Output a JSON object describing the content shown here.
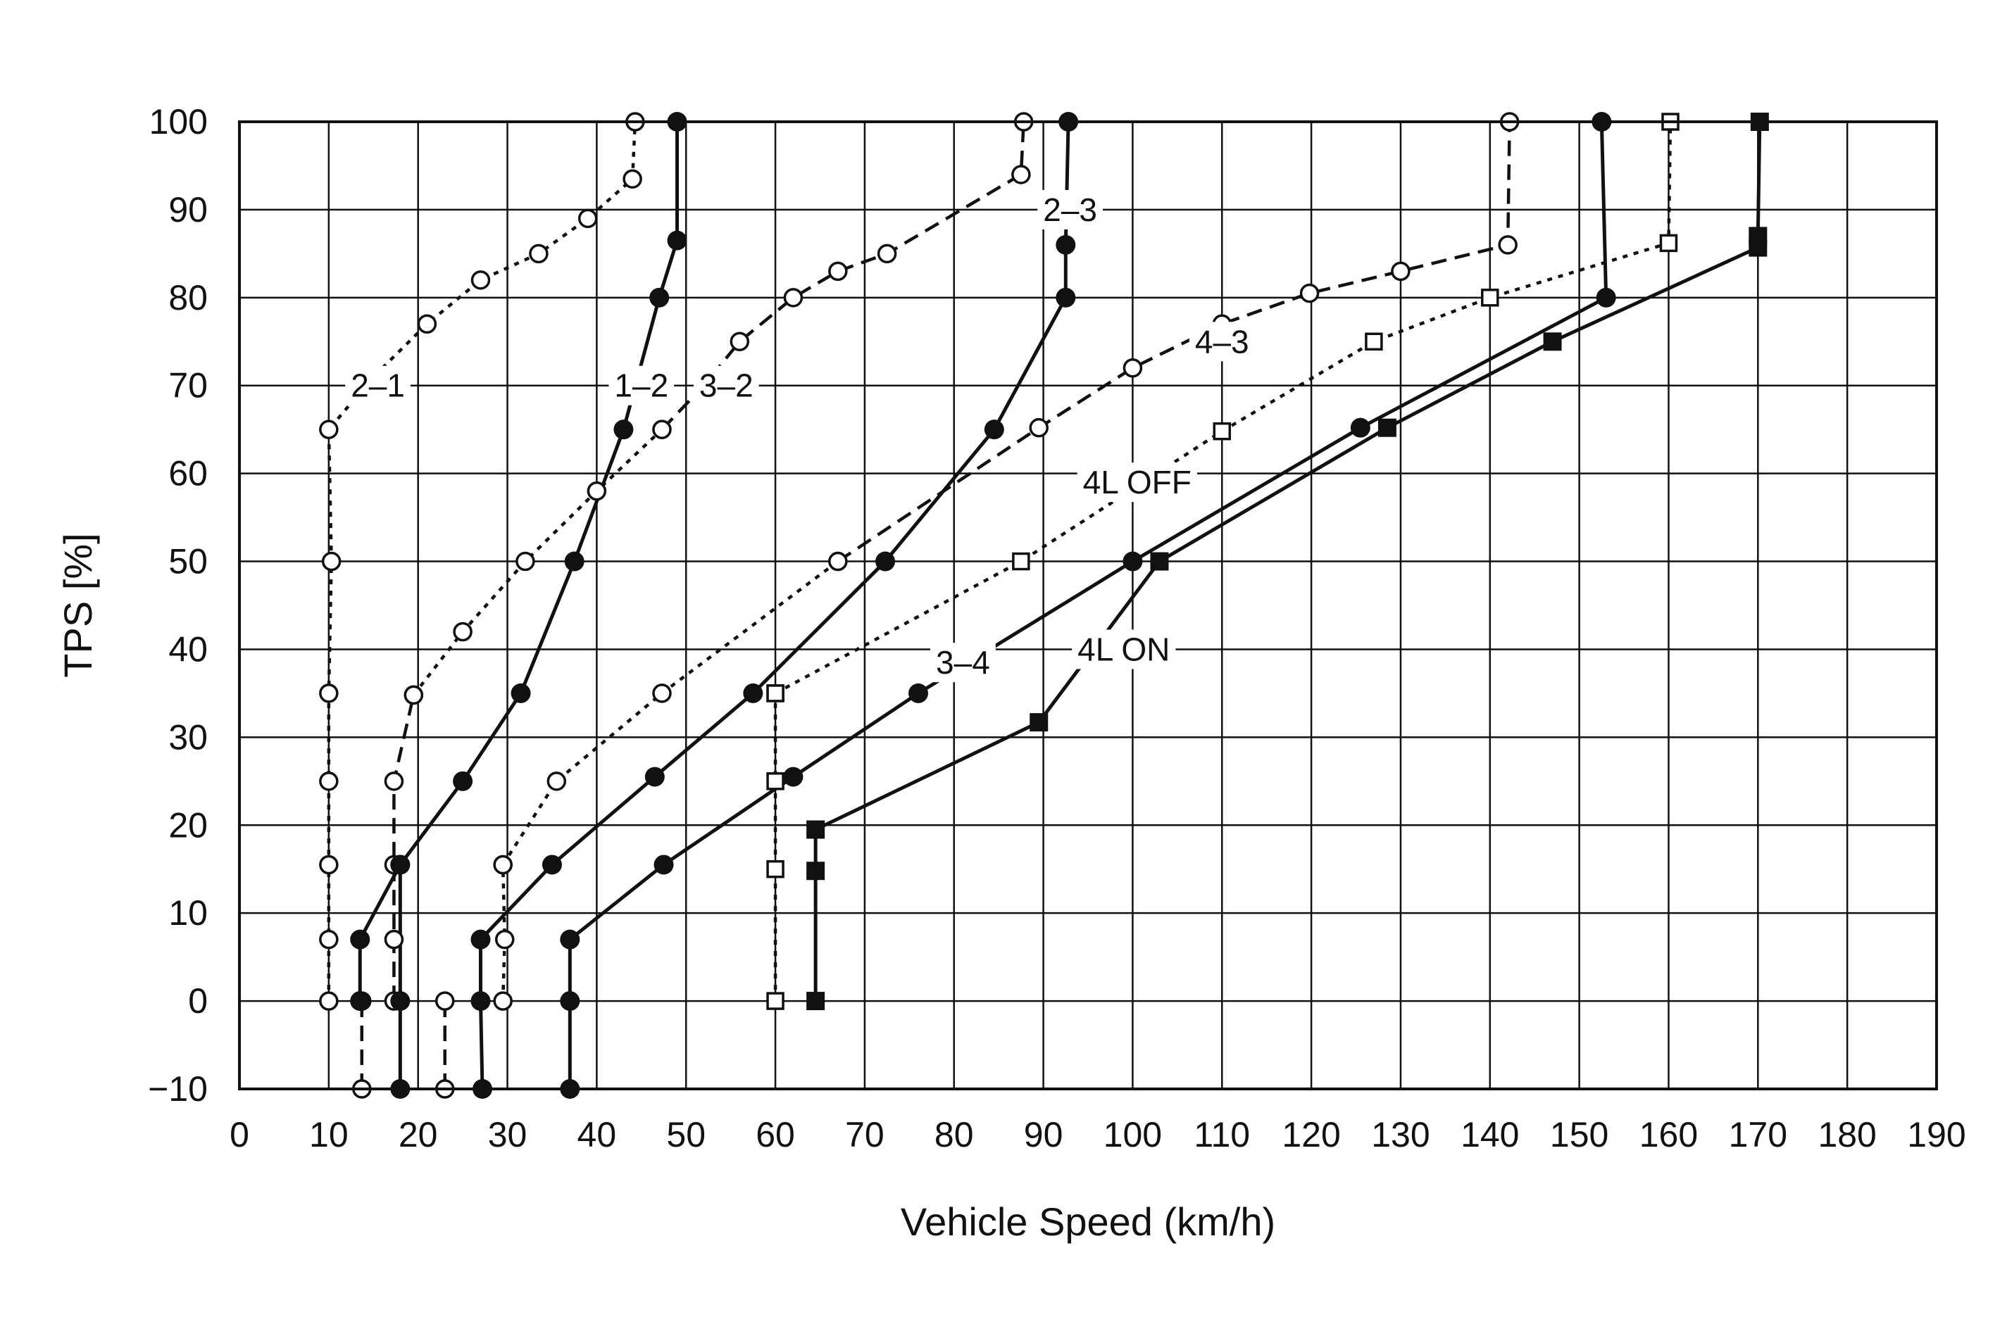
{
  "chart_data": {
    "type": "line",
    "xlabel": "Vehicle Speed (km/h)",
    "ylabel": "TPS [%]",
    "xlim": [
      0,
      190
    ],
    "ylim": [
      -10,
      100
    ],
    "xticks": [
      0,
      10,
      20,
      30,
      40,
      50,
      60,
      70,
      80,
      90,
      100,
      110,
      120,
      130,
      140,
      150,
      160,
      170,
      180,
      190
    ],
    "yticks": [
      -10,
      0,
      10,
      20,
      30,
      40,
      50,
      60,
      70,
      80,
      90,
      100
    ],
    "grid": true,
    "colors": {
      "line": "#111111",
      "grid": "#111111",
      "marker_open_fill": "#ffffff"
    },
    "labels": [
      {
        "text": "2–1",
        "x": 15.5,
        "y": 70
      },
      {
        "text": "1–2",
        "x": 45,
        "y": 70
      },
      {
        "text": "3–2",
        "x": 54.5,
        "y": 70
      },
      {
        "text": "2–3",
        "x": 93,
        "y": 90
      },
      {
        "text": "4–3",
        "x": 110,
        "y": 75
      },
      {
        "text": "4L OFF",
        "x": 100.5,
        "y": 59
      },
      {
        "text": "3–4",
        "x": 81,
        "y": 38.5
      },
      {
        "text": "4L ON",
        "x": 99,
        "y": 40
      }
    ],
    "series": [
      {
        "style": "dotted",
        "marker": "open-circle",
        "points": [
          [
            10,
            0
          ],
          [
            10,
            7
          ],
          [
            10,
            15.5
          ],
          [
            10,
            25
          ],
          [
            10,
            35
          ],
          [
            10.3,
            50
          ],
          [
            10,
            65
          ],
          [
            15,
            71
          ],
          [
            21,
            77
          ],
          [
            27,
            82
          ],
          [
            33.5,
            85
          ],
          [
            39,
            89
          ],
          [
            44,
            93.5
          ],
          [
            44.3,
            100
          ]
        ]
      },
      {
        "style": "dashed",
        "marker": "open-circle",
        "points": [
          [
            13.7,
            -10
          ],
          [
            13.7,
            0
          ]
        ]
      },
      {
        "style": "dashed",
        "marker": "open-circle",
        "points": [
          [
            17.3,
            0
          ],
          [
            17.3,
            7
          ],
          [
            17.3,
            15.5
          ],
          [
            17.3,
            25
          ],
          [
            19.5,
            34.8
          ]
        ]
      },
      {
        "style": "dotted",
        "marker": "open-circle",
        "points": [
          [
            19.5,
            34.8
          ],
          [
            25,
            42
          ],
          [
            32,
            50
          ],
          [
            40,
            58
          ],
          [
            47.3,
            65
          ]
        ]
      },
      {
        "style": "dashed",
        "marker": "open-circle",
        "points": [
          [
            47.3,
            65
          ],
          [
            52,
            70
          ],
          [
            56,
            75
          ],
          [
            62,
            80
          ],
          [
            67,
            83
          ],
          [
            72.5,
            85
          ],
          [
            87.5,
            94
          ],
          [
            87.8,
            100
          ]
        ]
      },
      {
        "style": "dashed",
        "marker": "open-circle",
        "points": [
          [
            23,
            -10
          ],
          [
            23,
            0
          ]
        ]
      },
      {
        "style": "dotted",
        "marker": "open-circle",
        "points": [
          [
            29.5,
            0
          ],
          [
            29.7,
            7
          ],
          [
            29.5,
            15.5
          ]
        ]
      },
      {
        "style": "dotted",
        "marker": "open-circle",
        "points": [
          [
            29.5,
            15.5
          ],
          [
            35.5,
            25
          ],
          [
            47.3,
            35
          ],
          [
            67,
            50
          ]
        ]
      },
      {
        "style": "dashed",
        "marker": "open-circle",
        "points": [
          [
            67,
            50
          ],
          [
            89.5,
            65.2
          ],
          [
            100,
            72
          ],
          [
            110,
            77
          ],
          [
            119.8,
            80.5
          ],
          [
            130,
            83
          ],
          [
            142,
            86
          ],
          [
            142.2,
            100
          ]
        ]
      },
      {
        "style": "solid",
        "marker": "filled-circle",
        "points": [
          [
            18,
            -10
          ],
          [
            18,
            0
          ],
          [
            18,
            15.5
          ],
          [
            25,
            25
          ],
          [
            31.5,
            35
          ],
          [
            37.5,
            50
          ],
          [
            43,
            65
          ],
          [
            47,
            80
          ],
          [
            49,
            86.5
          ],
          [
            49,
            100
          ]
        ]
      },
      {
        "style": "solid",
        "marker": "filled-circle",
        "points": [
          [
            13.5,
            0
          ],
          [
            13.5,
            7
          ],
          [
            18,
            15.5
          ]
        ]
      },
      {
        "style": "solid",
        "marker": "filled-circle",
        "points": [
          [
            27.2,
            -10
          ],
          [
            27,
            0
          ],
          [
            27,
            7
          ],
          [
            35,
            15.5
          ],
          [
            46.5,
            25.5
          ],
          [
            57.5,
            35
          ],
          [
            72.3,
            50
          ],
          [
            84.5,
            65
          ],
          [
            92.5,
            80
          ],
          [
            92.5,
            86
          ],
          [
            92.8,
            100
          ]
        ]
      },
      {
        "style": "solid",
        "marker": "filled-circle",
        "points": [
          [
            37,
            -10
          ],
          [
            37,
            0
          ],
          [
            37,
            7
          ],
          [
            47.5,
            15.5
          ],
          [
            62,
            25.5
          ],
          [
            76,
            35
          ],
          [
            100,
            50
          ],
          [
            125.5,
            65.2
          ],
          [
            153,
            80
          ],
          [
            152.5,
            100
          ]
        ]
      },
      {
        "style": "dotted",
        "marker": "open-square",
        "points": [
          [
            60,
            0
          ],
          [
            60,
            15
          ],
          [
            60,
            25
          ],
          [
            60,
            35
          ]
        ]
      },
      {
        "style": "dotted",
        "marker": "open-square",
        "points": [
          [
            60,
            35
          ],
          [
            87.5,
            50
          ],
          [
            110,
            64.8
          ],
          [
            127,
            75
          ],
          [
            140,
            80
          ],
          [
            160,
            86.2
          ],
          [
            160.2,
            100
          ]
        ]
      },
      {
        "style": "solid",
        "marker": "filled-square",
        "points": [
          [
            64.5,
            0
          ],
          [
            64.5,
            14.8
          ],
          [
            64.5,
            19.5
          ],
          [
            89.5,
            31.7
          ],
          [
            103,
            50
          ],
          [
            128.5,
            65.2
          ],
          [
            147,
            75
          ],
          [
            170,
            85.7
          ],
          [
            170,
            87
          ],
          [
            170.2,
            100
          ]
        ]
      }
    ]
  }
}
